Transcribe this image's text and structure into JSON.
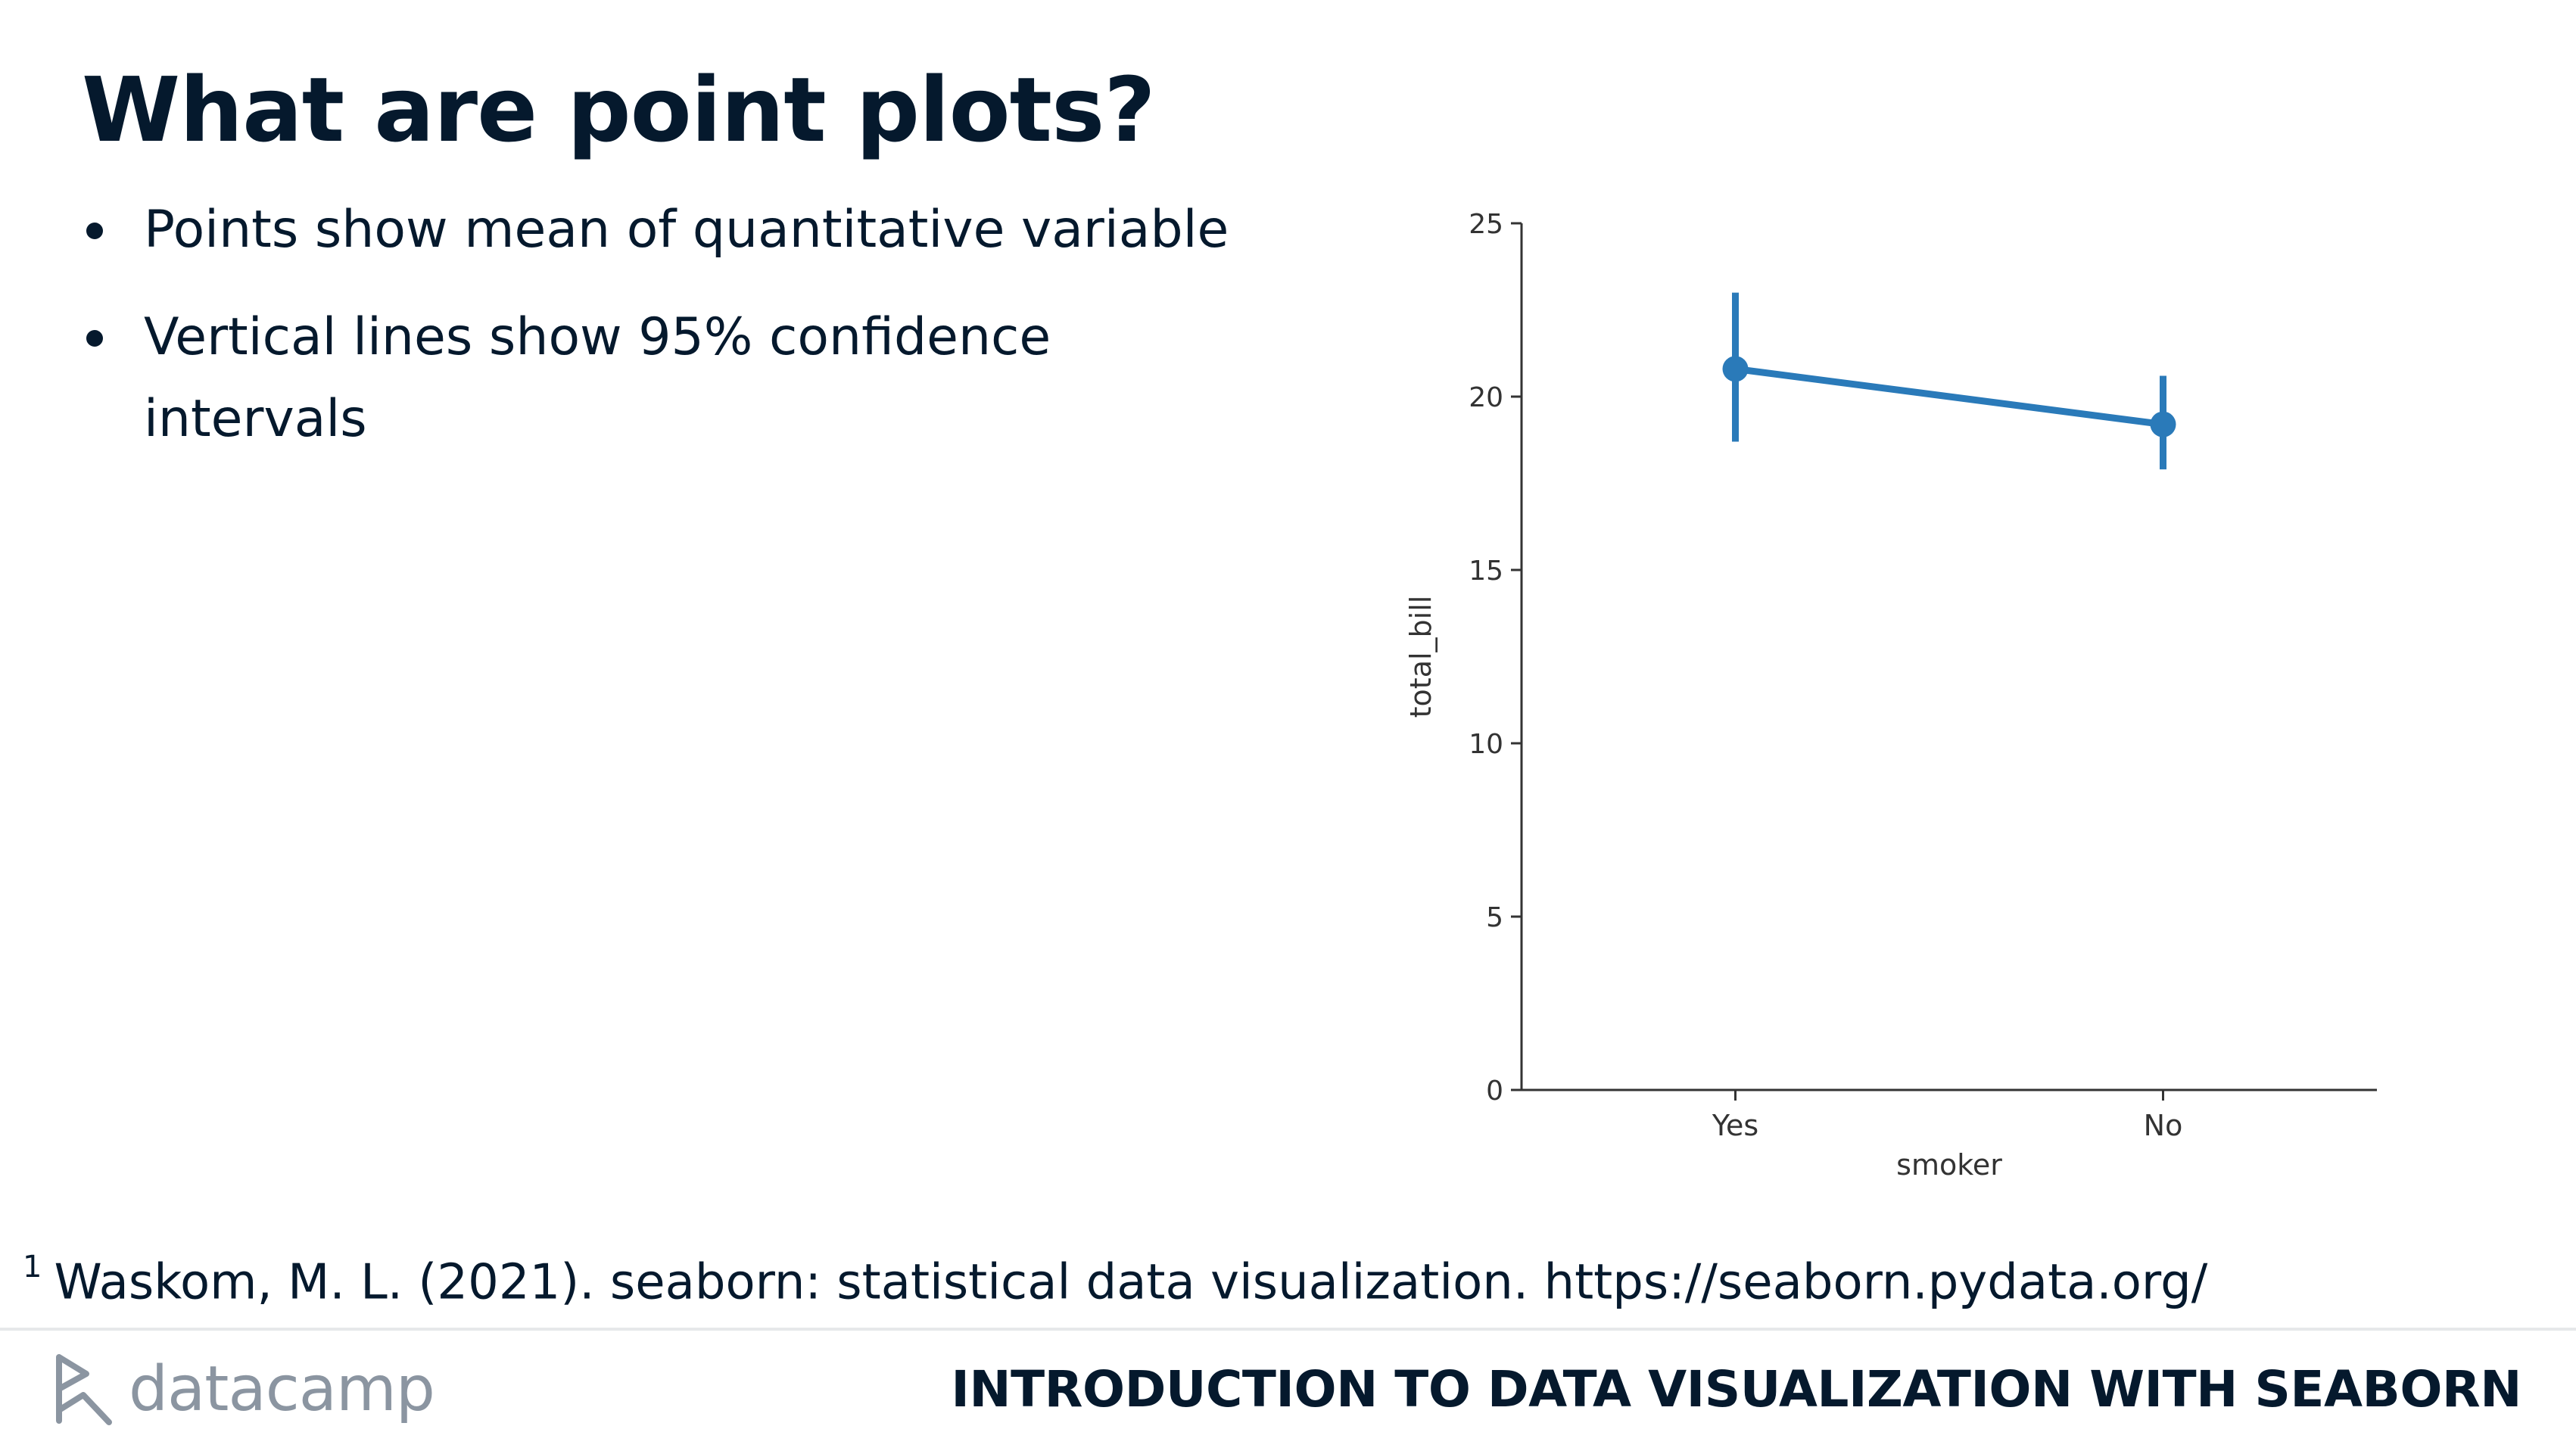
{
  "slide": {
    "title": "What are point plots?",
    "bullets": [
      "Points show mean of quantitative variable",
      "Vertical lines show 95% confidence intervals"
    ]
  },
  "footnote": {
    "marker": "1",
    "text": "Waskom, M. L. (2021). seaborn: statistical data visualization. https://seaborn.pydata.org/"
  },
  "footer": {
    "brand": "datacamp",
    "course_title": "INTRODUCTION TO DATA VISUALIZATION WITH SEABORN"
  },
  "colors": {
    "text": "#05192d",
    "series": "#2a7ab9",
    "axis": "#333333",
    "muted": "#8b95a1"
  },
  "chart_data": {
    "type": "line",
    "subtype": "point plot",
    "categories": [
      "Yes",
      "No"
    ],
    "series": [
      {
        "values": [
          20.8,
          19.2
        ],
        "ci_low": [
          18.7,
          17.9
        ],
        "ci_high": [
          23.0,
          20.6
        ]
      }
    ],
    "xlabel": "smoker",
    "ylabel": "total_bill",
    "ylim": [
      0,
      25
    ],
    "yticks": [
      0,
      5,
      10,
      15,
      20,
      25
    ],
    "grid": false
  }
}
